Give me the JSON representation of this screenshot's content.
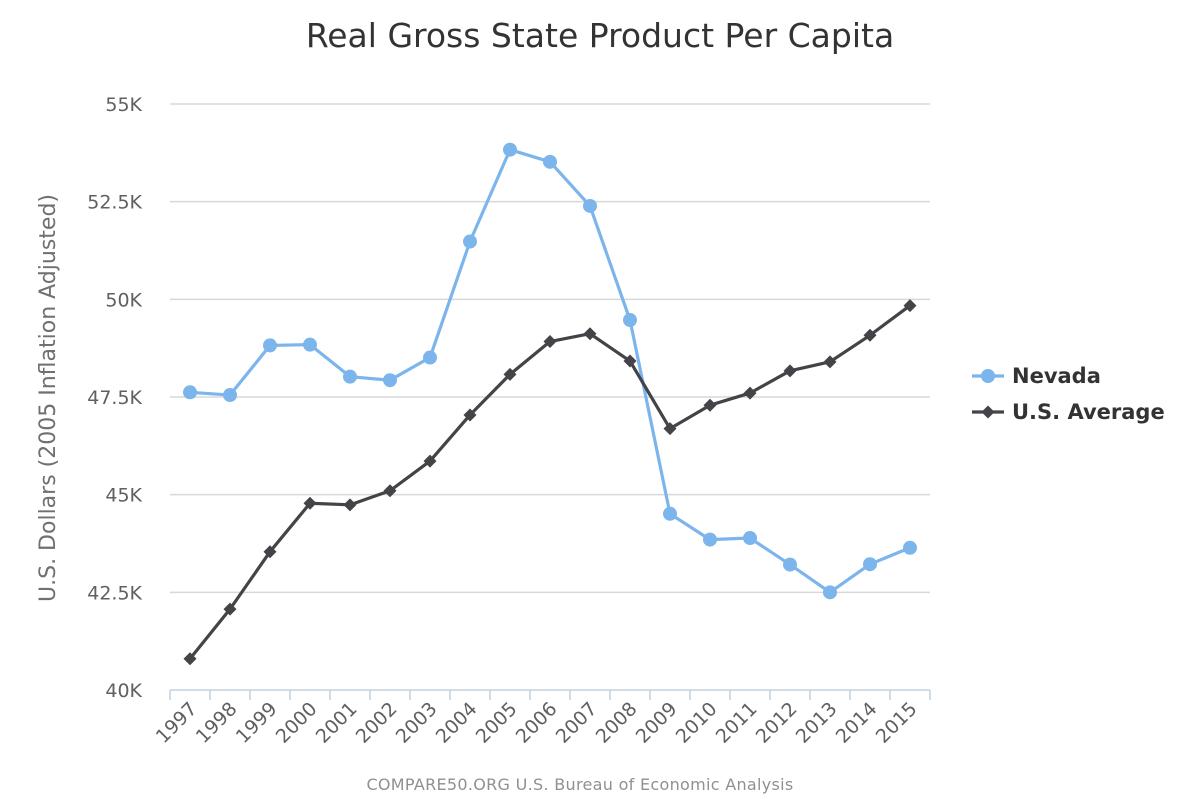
{
  "chart_data": {
    "type": "line",
    "title": "Real Gross State Product Per Capita",
    "xlabel": "",
    "ylabel": "U.S. Dollars (2005 Inflation Adjusted)",
    "ylim": [
      40000,
      55000
    ],
    "yticks": [
      40000,
      42500,
      45000,
      47500,
      50000,
      52500,
      55000
    ],
    "ytick_labels": [
      "40K",
      "42.5K",
      "45K",
      "47.5K",
      "50K",
      "52.5K",
      "55K"
    ],
    "categories": [
      "1997",
      "1998",
      "1999",
      "2000",
      "2001",
      "2002",
      "2003",
      "2004",
      "2005",
      "2006",
      "2007",
      "2008",
      "2009",
      "2010",
      "2011",
      "2012",
      "2013",
      "2014",
      "2015"
    ],
    "grid": true,
    "legend_position": "right",
    "series": [
      {
        "name": "Nevada",
        "color": "#7cb5ec",
        "marker": "circle",
        "values": [
          47620,
          47550,
          48820,
          48840,
          48020,
          47930,
          48510,
          51480,
          53830,
          53520,
          52390,
          49470,
          44510,
          43850,
          43890,
          43210,
          42500,
          43220,
          43640
        ]
      },
      {
        "name": "U.S. Average",
        "color": "#434348",
        "marker": "diamond",
        "values": [
          40800,
          42070,
          43540,
          44780,
          44740,
          45100,
          45860,
          47040,
          48080,
          48920,
          49120,
          48420,
          46690,
          47290,
          47600,
          48170,
          48400,
          49080,
          49840
        ]
      }
    ]
  },
  "credits": "COMPARE50.ORG U.S. Bureau of Economic Analysis"
}
